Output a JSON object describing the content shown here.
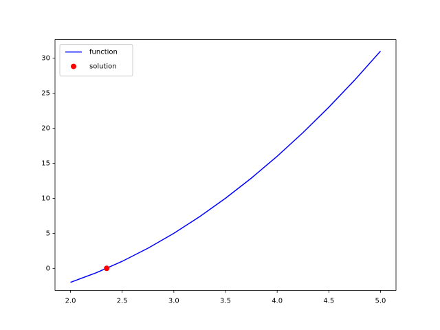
{
  "chart_data": {
    "type": "line",
    "x": [
      2,
      2.25,
      2.5,
      2.75,
      3,
      3.25,
      3.5,
      3.75,
      4,
      4.25,
      4.5,
      4.75,
      5
    ],
    "series": [
      {
        "name": "function",
        "type": "line",
        "color": "#0000ff",
        "x": [
          2,
          2.25,
          2.5,
          2.75,
          3,
          3.25,
          3.5,
          3.75,
          4,
          4.25,
          4.5,
          4.75,
          5
        ],
        "values": [
          -2,
          -0.625,
          1,
          2.875,
          5,
          7.375,
          10,
          12.875,
          16,
          19.375,
          23,
          26.875,
          31
        ]
      },
      {
        "name": "solution",
        "type": "scatter",
        "color": "#ff0000",
        "x": [
          2.35
        ],
        "values": [
          0
        ]
      }
    ],
    "xlim": [
      1.85,
      5.15
    ],
    "ylim": [
      -3.15,
      32.65
    ],
    "xticks": [
      {
        "value": 2,
        "label": "2.0"
      },
      {
        "value": 2.5,
        "label": "2.5"
      },
      {
        "value": 3,
        "label": "3.0"
      },
      {
        "value": 3.5,
        "label": "3.5"
      },
      {
        "value": 4,
        "label": "4.0"
      },
      {
        "value": 4.5,
        "label": "4.5"
      },
      {
        "value": 5,
        "label": "5.0"
      }
    ],
    "yticks": [
      0,
      5,
      10,
      15,
      20,
      25,
      30
    ],
    "legend": "upper left"
  }
}
